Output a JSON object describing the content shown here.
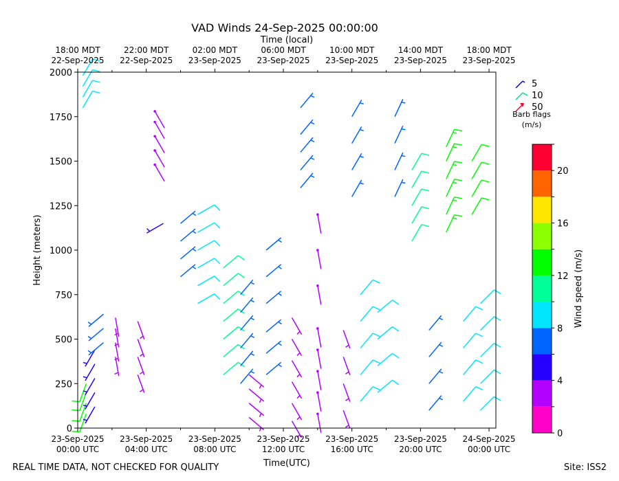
{
  "chart_data": {
    "type": "wind-barb",
    "title": "VAD Winds 24-Sep-2025 00:00:00",
    "top_axis_title": "Time (local)",
    "xlabel": "Time(UTC)",
    "ylabel": "Height (meters)",
    "ylim": [
      0,
      2000
    ],
    "xlim_hours_utc": [
      0,
      24.4
    ],
    "y_ticks": [
      0,
      250,
      500,
      750,
      1000,
      1250,
      1500,
      1750,
      2000
    ],
    "bottom_ticks": [
      {
        "hour": 0,
        "line1": "23-Sep-2025",
        "line2": "00:00 UTC"
      },
      {
        "hour": 4,
        "line1": "23-Sep-2025",
        "line2": "04:00 UTC"
      },
      {
        "hour": 8,
        "line1": "23-Sep-2025",
        "line2": "08:00 UTC"
      },
      {
        "hour": 12,
        "line1": "23-Sep-2025",
        "line2": "12:00 UTC"
      },
      {
        "hour": 16,
        "line1": "23-Sep-2025",
        "line2": "16:00 UTC"
      },
      {
        "hour": 20,
        "line1": "23-Sep-2025",
        "line2": "20:00 UTC"
      },
      {
        "hour": 24,
        "line1": "24-Sep-2025",
        "line2": "00:00 UTC"
      }
    ],
    "top_ticks": [
      {
        "hour": 0,
        "line1": "18:00 MDT",
        "line2": "22-Sep-2025"
      },
      {
        "hour": 4,
        "line1": "22:00 MDT",
        "line2": "22-Sep-2025"
      },
      {
        "hour": 8,
        "line1": "02:00 MDT",
        "line2": "23-Sep-2025"
      },
      {
        "hour": 12,
        "line1": "06:00 MDT",
        "line2": "23-Sep-2025"
      },
      {
        "hour": 16,
        "line1": "10:00 MDT",
        "line2": "23-Sep-2025"
      },
      {
        "hour": 20,
        "line1": "14:00 MDT",
        "line2": "23-Sep-2025"
      },
      {
        "hour": 24,
        "line1": "18:00 MDT",
        "line2": "23-Sep-2025"
      }
    ],
    "barb_legend": {
      "entries": [
        {
          "value": "5",
          "color": "#0000cc"
        },
        {
          "value": "10",
          "color": "#00dd88"
        },
        {
          "value": "50",
          "color": "#ff0033"
        }
      ],
      "caption_line1": "Barb flags",
      "caption_line2": "(m/s)"
    },
    "colorbar": {
      "label": "Wind speed (m/s)",
      "range": [
        0,
        22
      ],
      "tick_values": [
        0,
        4,
        8,
        12,
        16,
        20
      ],
      "bins": [
        {
          "from": 0,
          "to": 2,
          "color": "#ff00c8"
        },
        {
          "from": 2,
          "to": 4,
          "color": "#b400ff"
        },
        {
          "from": 4,
          "to": 6,
          "color": "#2800ff"
        },
        {
          "from": 6,
          "to": 8,
          "color": "#0064ff"
        },
        {
          "from": 8,
          "to": 10,
          "color": "#00e6ff"
        },
        {
          "from": 10,
          "to": 12,
          "color": "#00ff96"
        },
        {
          "from": 12,
          "to": 14,
          "color": "#00ff00"
        },
        {
          "from": 14,
          "to": 16,
          "color": "#8cff00"
        },
        {
          "from": 16,
          "to": 18,
          "color": "#ffe600"
        },
        {
          "from": 18,
          "to": 20,
          "color": "#ff6400"
        },
        {
          "from": 20,
          "to": 22,
          "color": "#ff0032"
        }
      ]
    },
    "series": [
      {
        "name": "profile-00.3h",
        "hour": 0.3,
        "heights": [
          1800,
          1860,
          1920,
          1980
        ],
        "speed": 9,
        "dir": 30
      },
      {
        "name": "profile-00.5h",
        "hour": 0.5,
        "heights": [
          80,
          140,
          200,
          250
        ],
        "speed": 12,
        "dir": 200
      },
      {
        "name": "profile-01.0h",
        "hour": 1.0,
        "heights": [
          120,
          200,
          280,
          360,
          440
        ],
        "speed": 4,
        "dir": 210
      },
      {
        "name": "profile-01.5h",
        "hour": 1.5,
        "heights": [
          480,
          560,
          640
        ],
        "speed": 7,
        "dir": 230
      },
      {
        "name": "profile-02.2h",
        "hour": 2.2,
        "heights": [
          400,
          480,
          560,
          620
        ],
        "speed": 3,
        "dir": 170
      },
      {
        "name": "profile-03.5h",
        "hour": 3.5,
        "heights": [
          300,
          400,
          500,
          600
        ],
        "speed": 3,
        "dir": 160
      },
      {
        "name": "profile-04.5h",
        "hour": 4.5,
        "heights": [
          1480,
          1560,
          1640,
          1720,
          1780
        ],
        "speed": 2,
        "dir": 150
      },
      {
        "name": "profile-05.0h",
        "hour": 5.0,
        "heights": [
          1150
        ],
        "speed": 5,
        "dir": 240
      },
      {
        "name": "profile-06.0h",
        "hour": 6.0,
        "heights": [
          850,
          950,
          1050,
          1150
        ],
        "speed": 7,
        "dir": 50
      },
      {
        "name": "profile-07.0h",
        "hour": 7.0,
        "heights": [
          700,
          800,
          900,
          1000,
          1100,
          1200
        ],
        "speed": 8,
        "dir": 60
      },
      {
        "name": "profile-08.5h",
        "hour": 8.5,
        "heights": [
          300,
          400,
          500,
          600,
          700,
          800,
          900
        ],
        "speed": 10,
        "dir": 50
      },
      {
        "name": "profile-09.5h",
        "hour": 9.5,
        "heights": [
          250,
          350,
          450,
          550,
          650,
          750
        ],
        "speed": 6,
        "dir": 40
      },
      {
        "name": "profile-10.0h",
        "hour": 10.0,
        "heights": [
          60,
          140,
          220,
          300
        ],
        "speed": 3,
        "dir": 130
      },
      {
        "name": "profile-11.0h",
        "hour": 11.0,
        "heights": [
          300,
          420,
          540,
          700,
          850,
          1000
        ],
        "speed": 7,
        "dir": 50
      },
      {
        "name": "profile-12.5h",
        "hour": 12.5,
        "heights": [
          40,
          140,
          260,
          380,
          500,
          620
        ],
        "speed": 3,
        "dir": 150
      },
      {
        "name": "profile-13.0h",
        "hour": 13.0,
        "heights": [
          1350,
          1450,
          1550,
          1650,
          1800
        ],
        "speed": 6,
        "dir": 40
      },
      {
        "name": "profile-14.0h",
        "hour": 14.0,
        "heights": [
          80,
          200,
          320,
          440,
          560,
          800,
          1000,
          1200
        ],
        "speed": 2,
        "dir": 170
      },
      {
        "name": "profile-15.5h",
        "hour": 15.5,
        "heights": [
          100,
          250,
          400,
          550
        ],
        "speed": 3,
        "dir": 160
      },
      {
        "name": "profile-16.0h",
        "hour": 16.0,
        "heights": [
          1300,
          1450,
          1600,
          1750
        ],
        "speed": 7,
        "dir": 30
      },
      {
        "name": "profile-16.5h",
        "hour": 16.5,
        "heights": [
          150,
          300,
          450,
          600,
          750
        ],
        "speed": 8,
        "dir": 40
      },
      {
        "name": "profile-17.5h",
        "hour": 17.5,
        "heights": [
          200,
          350,
          500,
          650
        ],
        "speed": 9,
        "dir": 50
      },
      {
        "name": "profile-18.5h",
        "hour": 18.5,
        "heights": [
          1300,
          1450,
          1600,
          1750
        ],
        "speed": 6,
        "dir": 25
      },
      {
        "name": "profile-19.5h",
        "hour": 19.5,
        "heights": [
          1050,
          1150,
          1250,
          1350,
          1450
        ],
        "speed": 10,
        "dir": 30
      },
      {
        "name": "profile-20.5h",
        "hour": 20.5,
        "heights": [
          100,
          250,
          400,
          550
        ],
        "speed": 6,
        "dir": 40
      },
      {
        "name": "profile-21.5h",
        "hour": 21.5,
        "heights": [
          1100,
          1200,
          1300,
          1400,
          1500,
          1580
        ],
        "speed": 13,
        "dir": 25
      },
      {
        "name": "profile-22.5h",
        "hour": 22.5,
        "heights": [
          150,
          300,
          450,
          600
        ],
        "speed": 9,
        "dir": 40
      },
      {
        "name": "profile-23.0h",
        "hour": 23.0,
        "heights": [
          1200,
          1300,
          1400,
          1500
        ],
        "speed": 12,
        "dir": 30
      },
      {
        "name": "profile-23.5h",
        "hour": 23.5,
        "heights": [
          100,
          250,
          400,
          550,
          700
        ],
        "speed": 8,
        "dir": 45
      }
    ]
  },
  "footer": {
    "left": "REAL TIME DATA, NOT CHECKED FOR QUALITY",
    "right": "Site: ISS2"
  }
}
